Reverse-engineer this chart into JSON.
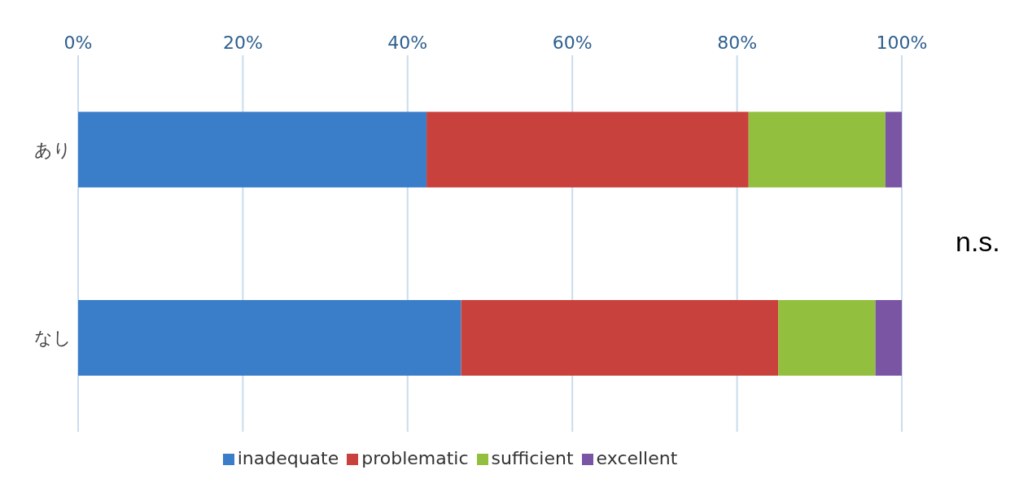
{
  "chart_data": {
    "type": "bar",
    "orientation": "horizontal",
    "stacked": true,
    "categories": [
      "あり",
      "なし"
    ],
    "series": [
      {
        "name": "inadequate",
        "color": "#3a7dc9",
        "values": [
          42.3,
          46.5
        ]
      },
      {
        "name": "problematic",
        "color": "#c9413c",
        "values": [
          39.1,
          38.5
        ]
      },
      {
        "name": "sufficient",
        "color": "#93bf3f",
        "values": [
          16.6,
          11.8
        ]
      },
      {
        "name": "excellent",
        "color": "#7a55a3",
        "values": [
          2.0,
          3.2
        ]
      }
    ],
    "xlim": [
      0,
      100
    ],
    "xticks": [
      {
        "value": 0,
        "label": "0%"
      },
      {
        "value": 20,
        "label": "20%"
      },
      {
        "value": 40,
        "label": "40%"
      },
      {
        "value": 60,
        "label": "60%"
      },
      {
        "value": 80,
        "label": "80%"
      },
      {
        "value": 100,
        "label": "100%"
      }
    ],
    "grid": "x",
    "legend": "bottom",
    "annotations": [
      "n.s."
    ]
  }
}
